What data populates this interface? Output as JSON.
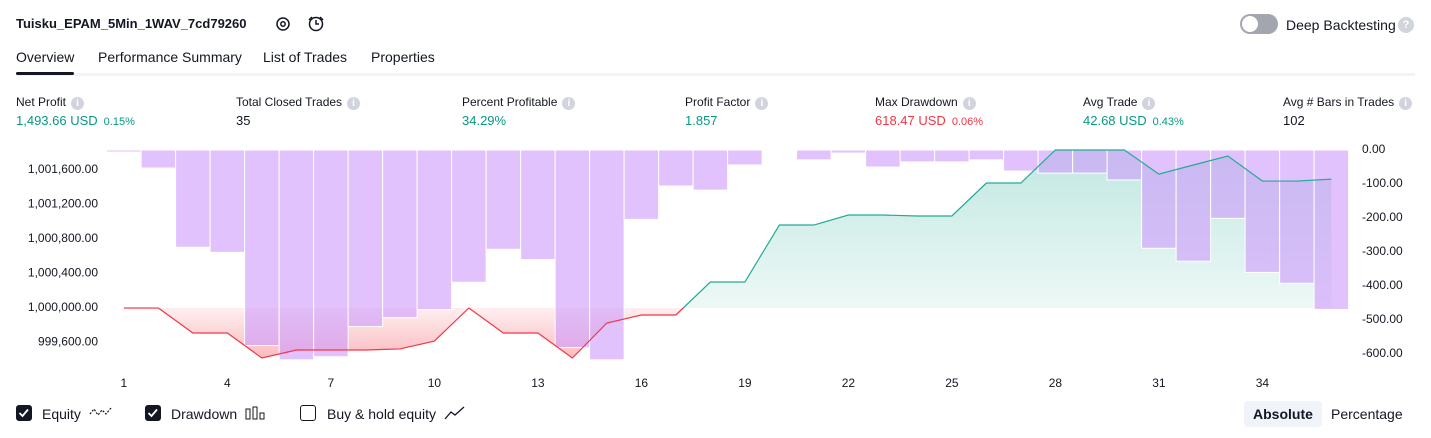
{
  "header": {
    "title": "Tuisku_EPAM_5Min_1WAV_7cd79260",
    "toggle_label": "Deep Backtesting",
    "toggle_on": false
  },
  "tabs": {
    "items": [
      "Overview",
      "Performance Summary",
      "List of Trades",
      "Properties"
    ],
    "active": 0
  },
  "metrics": [
    {
      "label": "Net Profit",
      "value": "1,493.66 USD",
      "percent": "0.15%",
      "tone": "positive"
    },
    {
      "label": "Total Closed Trades",
      "value": "35",
      "tone": "neutral"
    },
    {
      "label": "Percent Profitable",
      "value": "34.29%",
      "tone": "positive"
    },
    {
      "label": "Profit Factor",
      "value": "1.857",
      "tone": "positive"
    },
    {
      "label": "Max Drawdown",
      "value": "618.47 USD",
      "percent": "0.06%",
      "tone": "negative"
    },
    {
      "label": "Avg Trade",
      "value": "42.68 USD",
      "percent": "0.43%",
      "tone": "positive"
    },
    {
      "label": "Avg # Bars in Trades",
      "value": "102",
      "tone": "neutral"
    }
  ],
  "chart_data": {
    "type": "equity-drawdown",
    "x": [
      1,
      2,
      3,
      4,
      5,
      6,
      7,
      8,
      9,
      10,
      11,
      12,
      13,
      14,
      15,
      16,
      17,
      18,
      19,
      20,
      21,
      22,
      23,
      24,
      25,
      26,
      27,
      28,
      29,
      30,
      31,
      32,
      33,
      34,
      35,
      36
    ],
    "series": [
      {
        "name": "Equity",
        "checked": true,
        "color": "#22ab94",
        "negative_color": "#f23645",
        "values": [
          1000000,
          1000000,
          999710,
          999710,
          999420,
          999513,
          999513,
          999513,
          999525,
          999617,
          1000000,
          999710,
          999710,
          999420,
          999826,
          999919,
          999919,
          1000301,
          1000301,
          1000962,
          1000962,
          1001078,
          1001078,
          1001067,
          1001067,
          1001449,
          1001449,
          1001832,
          1001832,
          1001832,
          1001553,
          1001658,
          1001762,
          1001472,
          1001472,
          1001494
        ]
      },
      {
        "name": "Drawdown",
        "checked": true,
        "color": "#ce9cfc",
        "axis": "y2",
        "values": [
          -6,
          -53,
          -286,
          -301,
          -575,
          -617,
          -608,
          -519,
          -493,
          -469,
          -389,
          -292,
          -322,
          -581,
          -617,
          -204,
          -106,
          -118,
          -44,
          -3,
          -29,
          -9,
          -50,
          -35,
          -35,
          -29,
          -62,
          -68,
          -68,
          -88,
          -289,
          -327,
          -201,
          -360,
          -392,
          -469
        ]
      }
    ],
    "legend_extra": {
      "name": "Buy & hold equity",
      "checked": false
    },
    "xlim": [
      0.54,
      36.54
    ],
    "xticks": [
      1,
      4,
      7,
      10,
      13,
      16,
      19,
      22,
      25,
      28,
      31,
      34
    ],
    "ylim": [
      999281,
      1001832
    ],
    "yticks": [
      {
        "value": 999600,
        "label": "999,600.00"
      },
      {
        "value": 1000000,
        "label": "1,000,000.00"
      },
      {
        "value": 1000400,
        "label": "1,000,400.00"
      },
      {
        "value": 1000800,
        "label": "1,000,800.00"
      },
      {
        "value": 1001200,
        "label": "1,001,200.00"
      },
      {
        "value": 1001600,
        "label": "1,001,600.00"
      }
    ],
    "y2lim": [
      -647,
      0
    ],
    "y2ticks": [
      {
        "value": 0,
        "label": "0.00"
      },
      {
        "value": -100,
        "label": "-100.00"
      },
      {
        "value": -200,
        "label": "-200.00"
      },
      {
        "value": -300,
        "label": "-300.00"
      },
      {
        "value": -400,
        "label": "-400.00"
      },
      {
        "value": -500,
        "label": "-500.00"
      },
      {
        "value": -600,
        "label": "-600.00"
      }
    ],
    "scale_modes": [
      "Absolute",
      "Percentage"
    ],
    "scale_mode_active": 0
  }
}
